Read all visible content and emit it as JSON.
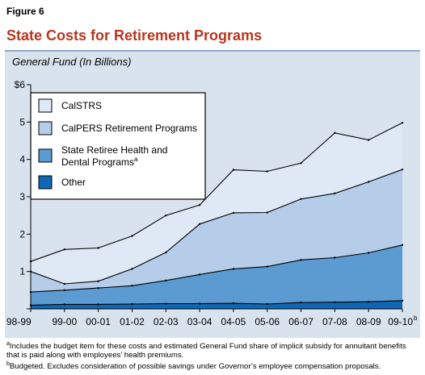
{
  "figure_label": "Figure 6",
  "title": "State Costs for Retirement Programs",
  "subtitle": "General Fund (In Billions)",
  "colors": {
    "title": "#b8361f",
    "panel": "#d9e3ee",
    "calstrs": "#dfe9f6",
    "calpers": "#b5cde9",
    "retiree_health": "#5b9bd2",
    "other": "#1166b3"
  },
  "chart_data": {
    "type": "area",
    "stacked": true,
    "categories": [
      "98-99",
      "99-00",
      "00-01",
      "01-02",
      "02-03",
      "03-04",
      "04-05",
      "05-06",
      "06-07",
      "07-08",
      "08-09",
      "09-10"
    ],
    "last_category_superscript": "b",
    "ylim": [
      0,
      6
    ],
    "ytick_values": [
      0,
      1,
      2,
      3,
      4,
      5,
      6
    ],
    "ytick_labels": [
      "",
      "1",
      "2",
      "3",
      "4",
      "5",
      "$6"
    ],
    "series": [
      {
        "name": "Other",
        "color": "#1166b3",
        "values": [
          0.1,
          0.12,
          0.12,
          0.13,
          0.14,
          0.14,
          0.15,
          0.13,
          0.17,
          0.18,
          0.19,
          0.22
        ]
      },
      {
        "name": "State Retiree Health and Dental Programs",
        "name_superscript": "a",
        "color": "#5b9bd2",
        "values": [
          0.35,
          0.38,
          0.44,
          0.49,
          0.62,
          0.78,
          0.92,
          1.0,
          1.14,
          1.19,
          1.31,
          1.49
        ]
      },
      {
        "name": "CalPERS Retirement Programs",
        "color": "#b5cde9",
        "values": [
          0.55,
          0.17,
          0.18,
          0.45,
          0.75,
          1.35,
          1.5,
          1.45,
          1.63,
          1.72,
          1.9,
          2.02
        ]
      },
      {
        "name": "CalSTRS",
        "color": "#dfe9f6",
        "values": [
          0.27,
          0.92,
          0.89,
          0.88,
          0.99,
          0.51,
          1.15,
          1.1,
          0.96,
          1.62,
          1.12,
          1.25
        ]
      }
    ],
    "legend_order": [
      "CalSTRS",
      "CalPERS Retirement Programs",
      "State Retiree Health and Dental Programs",
      "Other"
    ],
    "legend_position": "top-left",
    "grid": false
  },
  "footnotes": [
    {
      "marker": "a",
      "text": "Includes the budget item for these costs and estimated General Fund share of implicit subsidy for annuitant benefits that is paid along with employees’ health premiums."
    },
    {
      "marker": "b",
      "text": "Budgeted. Excludes consideration of possible savings under Governor’s employee compensation proposals."
    }
  ]
}
